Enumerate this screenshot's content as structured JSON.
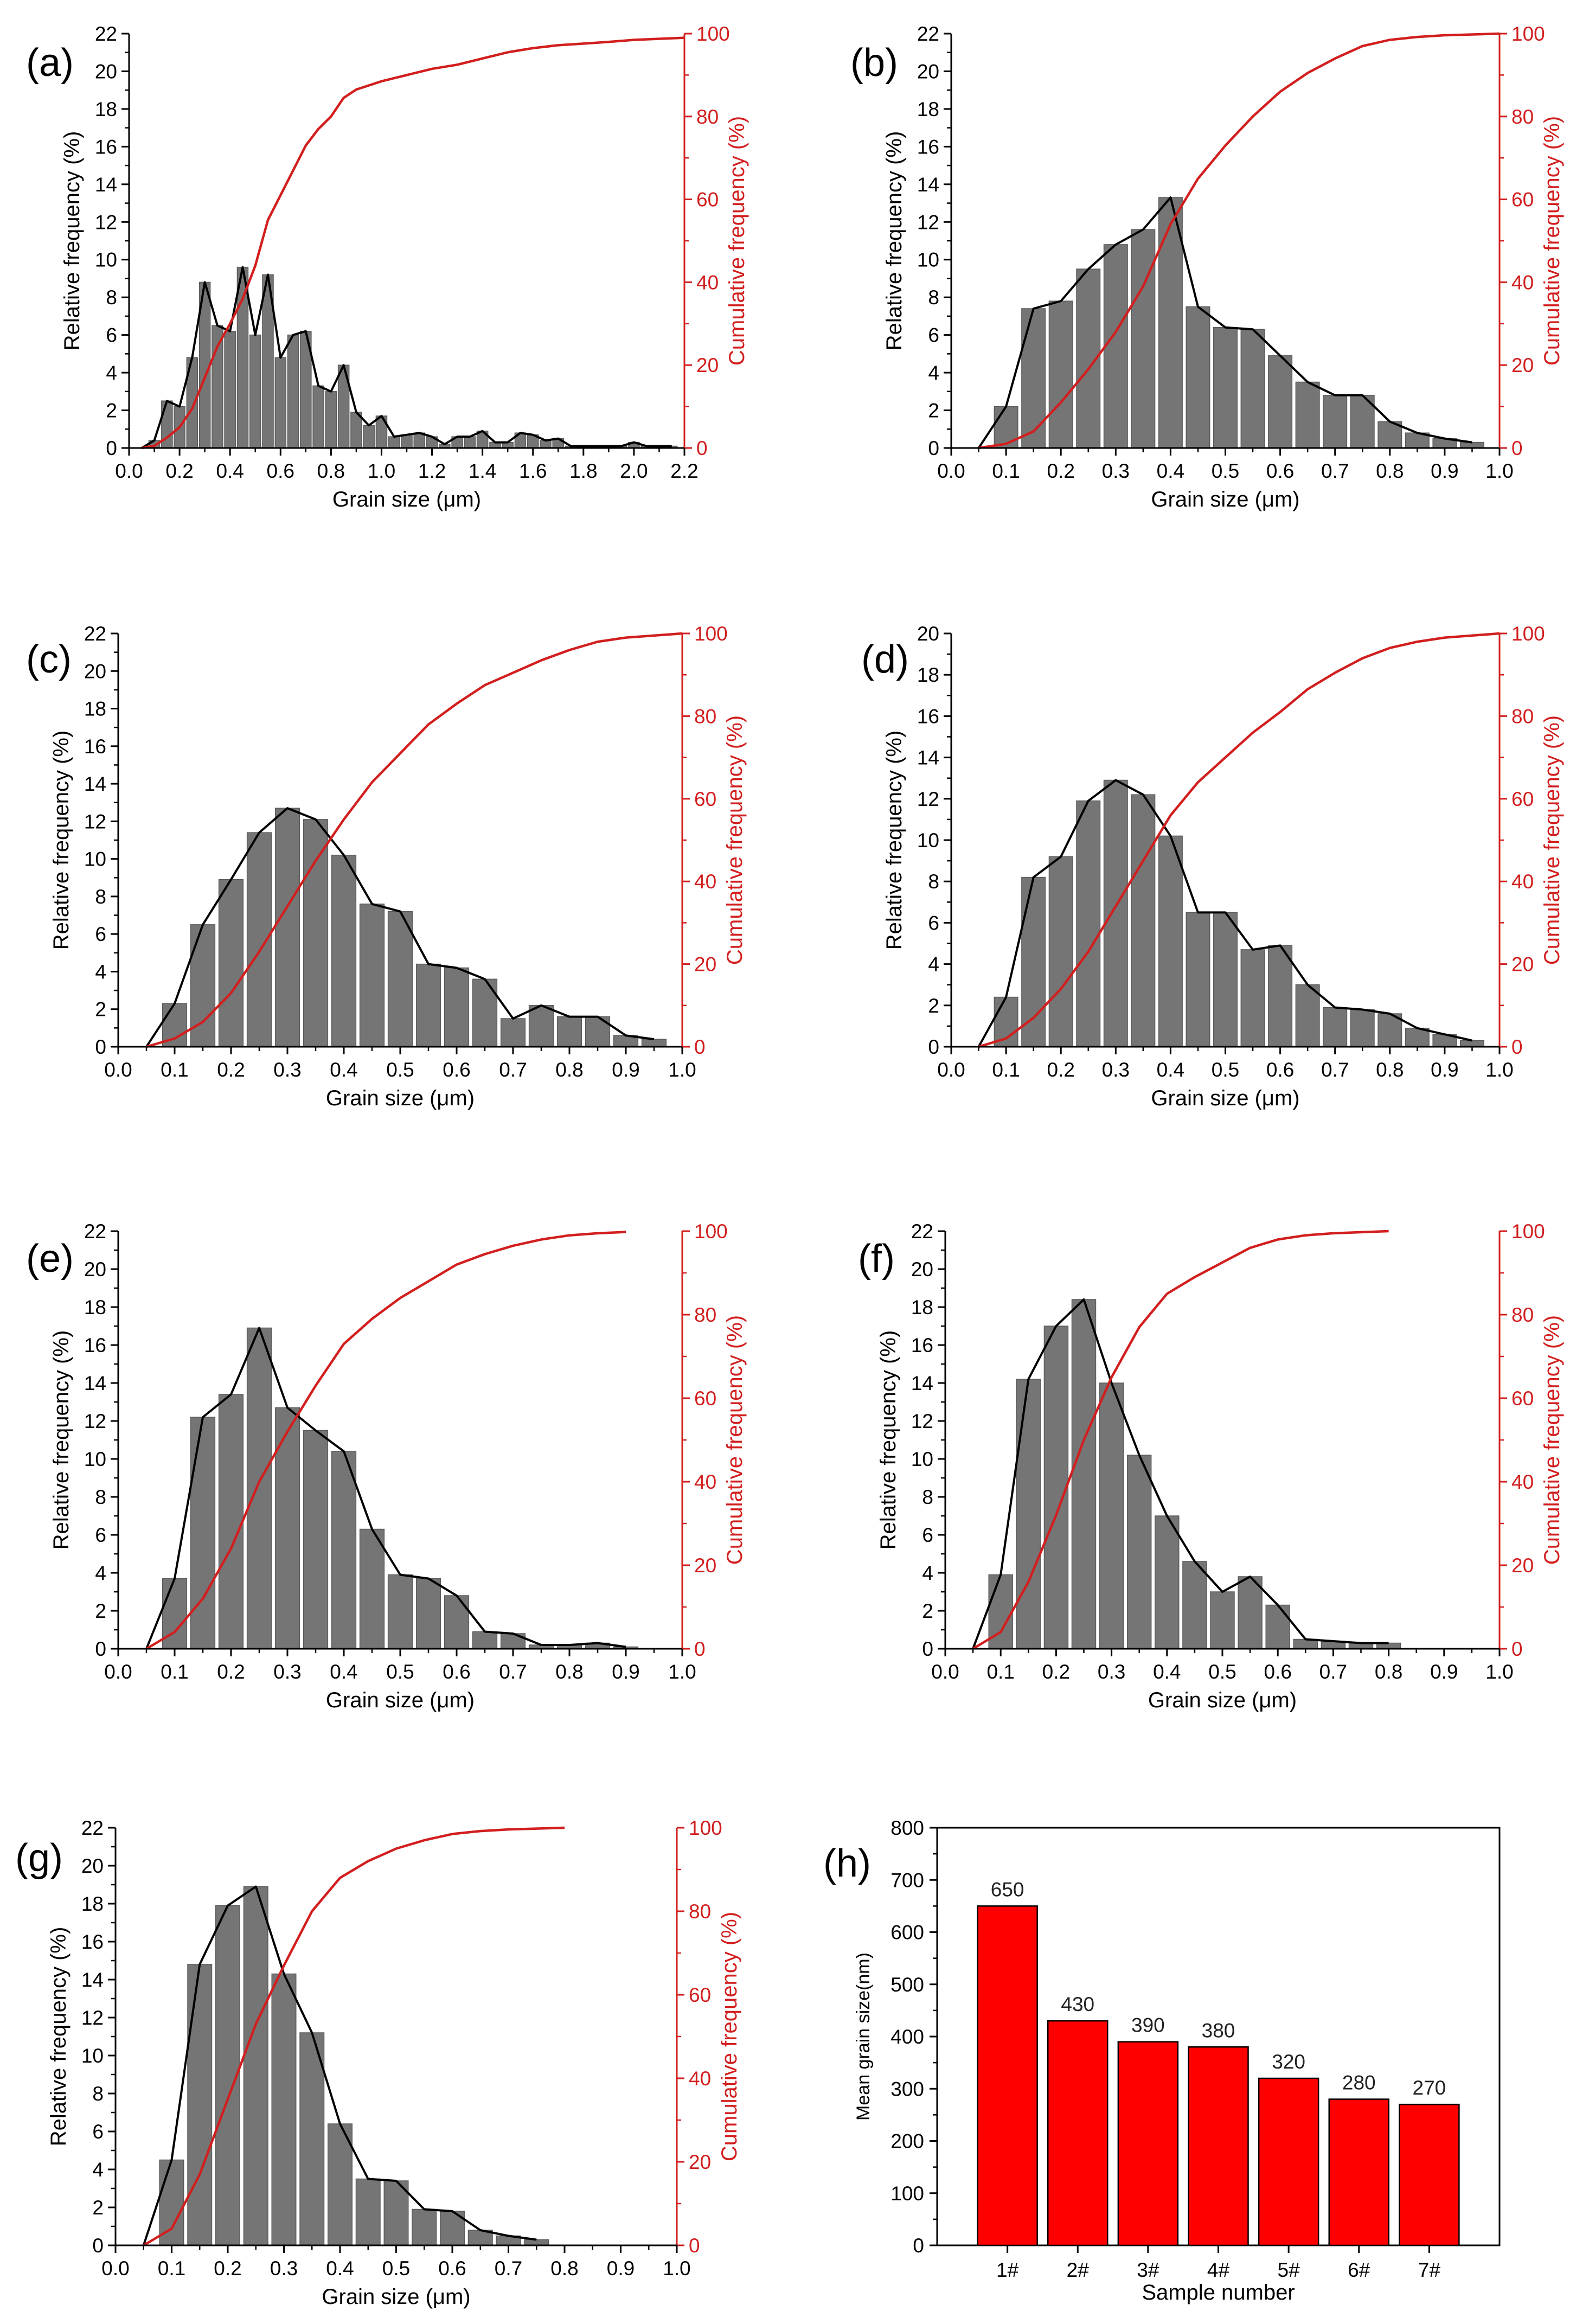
{
  "figure": {
    "x_label": "Grain size (μm)",
    "y_left_label": "Relative frequency (%)",
    "y_right_label": "Cumulative frequency (%)"
  },
  "colors": {
    "bar": "#757575",
    "bar_edge": "#5b5b5b",
    "envelope": "#000000",
    "cumulative": "#d21e1e",
    "mean_bar": "#ff0000",
    "axis": "#000000"
  },
  "chart_data": [
    {
      "id": "a",
      "panel_label": "(a)",
      "type": "bar",
      "bin_width": 0.05,
      "x": [
        0.1,
        0.15,
        0.2,
        0.25,
        0.3,
        0.35,
        0.4,
        0.45,
        0.5,
        0.55,
        0.6,
        0.65,
        0.7,
        0.75,
        0.8,
        0.85,
        0.9,
        0.95,
        1.0,
        1.05,
        1.1,
        1.15,
        1.2,
        1.25,
        1.3,
        1.35,
        1.4,
        1.45,
        1.5,
        1.55,
        1.6,
        1.65,
        1.7,
        1.75,
        1.8,
        1.85,
        1.9,
        1.95,
        2.0,
        2.05,
        2.1,
        2.15
      ],
      "values": [
        0.4,
        2.5,
        2.2,
        4.8,
        8.8,
        6.5,
        6.2,
        9.6,
        6.0,
        9.2,
        4.8,
        6.0,
        6.2,
        3.3,
        3.0,
        4.4,
        1.9,
        1.2,
        1.7,
        0.6,
        0.7,
        0.8,
        0.6,
        0.2,
        0.6,
        0.6,
        0.9,
        0.3,
        0.3,
        0.8,
        0.7,
        0.4,
        0.5,
        0.1,
        0.1,
        0.1,
        0.1,
        0.1,
        0.3,
        0.1,
        0.1,
        0.1
      ],
      "cumulative": [
        [
          0.05,
          0
        ],
        [
          0.1,
          0.5
        ],
        [
          0.15,
          2.5
        ],
        [
          0.2,
          5.0
        ],
        [
          0.25,
          9.5
        ],
        [
          0.3,
          17.0
        ],
        [
          0.35,
          24.5
        ],
        [
          0.4,
          30.0
        ],
        [
          0.45,
          36.0
        ],
        [
          0.5,
          44.0
        ],
        [
          0.55,
          55.0
        ],
        [
          0.6,
          61.0
        ],
        [
          0.65,
          67.0
        ],
        [
          0.7,
          73.0
        ],
        [
          0.75,
          77.0
        ],
        [
          0.8,
          80.0
        ],
        [
          0.85,
          84.5
        ],
        [
          0.9,
          86.5
        ],
        [
          0.95,
          87.5
        ],
        [
          1.0,
          88.5
        ],
        [
          1.1,
          90.0
        ],
        [
          1.2,
          91.5
        ],
        [
          1.3,
          92.5
        ],
        [
          1.4,
          94.0
        ],
        [
          1.5,
          95.5
        ],
        [
          1.6,
          96.5
        ],
        [
          1.7,
          97.2
        ],
        [
          1.8,
          97.6
        ],
        [
          1.9,
          98.0
        ],
        [
          2.0,
          98.5
        ],
        [
          2.2,
          99.0
        ]
      ],
      "xlim": [
        0,
        2.2
      ],
      "ylim": [
        0,
        22
      ],
      "y2lim": [
        0,
        100
      ],
      "x_ticks": [
        0.0,
        0.2,
        0.4,
        0.6,
        0.8,
        1.0,
        1.2,
        1.4,
        1.6,
        1.8,
        2.0,
        2.2
      ],
      "x_tick_labels": [
        "0.0",
        "0.2",
        "0.4",
        "0.6",
        "0.8",
        "1.0",
        "1.2",
        "1.4",
        "1.6",
        "1.8",
        "2.0",
        "2.2"
      ],
      "y_ticks": [
        0,
        2,
        4,
        6,
        8,
        10,
        12,
        14,
        16,
        18,
        20,
        22
      ],
      "y2_ticks": [
        0,
        20,
        40,
        60,
        80,
        100
      ]
    },
    {
      "id": "b",
      "panel_label": "(b)",
      "type": "bar",
      "bin_width": 0.05,
      "x": [
        0.1,
        0.15,
        0.2,
        0.25,
        0.3,
        0.35,
        0.4,
        0.45,
        0.5,
        0.55,
        0.6,
        0.65,
        0.7,
        0.75,
        0.8,
        0.85,
        0.9,
        0.95
      ],
      "values": [
        2.2,
        7.4,
        7.8,
        9.5,
        10.8,
        11.6,
        13.3,
        7.5,
        6.4,
        6.3,
        4.9,
        3.5,
        2.8,
        2.8,
        1.4,
        0.8,
        0.5,
        0.3
      ],
      "cumulative": [
        [
          0.05,
          0
        ],
        [
          0.1,
          1.0
        ],
        [
          0.15,
          4.0
        ],
        [
          0.2,
          11.0
        ],
        [
          0.25,
          19.0
        ],
        [
          0.3,
          28.0
        ],
        [
          0.35,
          39.0
        ],
        [
          0.4,
          54.0
        ],
        [
          0.45,
          65.0
        ],
        [
          0.5,
          73.0
        ],
        [
          0.55,
          80.0
        ],
        [
          0.6,
          86.0
        ],
        [
          0.65,
          90.5
        ],
        [
          0.7,
          94.0
        ],
        [
          0.75,
          97.0
        ],
        [
          0.8,
          98.5
        ],
        [
          0.85,
          99.2
        ],
        [
          0.9,
          99.6
        ],
        [
          1.0,
          100
        ]
      ],
      "xlim": [
        0,
        1.0
      ],
      "ylim": [
        0,
        22
      ],
      "y2lim": [
        0,
        100
      ],
      "x_ticks": [
        0.0,
        0.1,
        0.2,
        0.3,
        0.4,
        0.5,
        0.6,
        0.7,
        0.8,
        0.9,
        1.0
      ],
      "x_tick_labels": [
        "0.0",
        "0.1",
        "0.2",
        "0.3",
        "0.4",
        "0.5",
        "0.6",
        "0.7",
        "0.8",
        "0.9",
        "1.0"
      ],
      "y_ticks": [
        0,
        2,
        4,
        6,
        8,
        10,
        12,
        14,
        16,
        18,
        20,
        22
      ],
      "y2_ticks": [
        0,
        20,
        40,
        60,
        80,
        100
      ]
    },
    {
      "id": "c",
      "panel_label": "(c)",
      "type": "bar",
      "bin_width": 0.05,
      "x": [
        0.1,
        0.15,
        0.2,
        0.25,
        0.3,
        0.35,
        0.4,
        0.45,
        0.5,
        0.55,
        0.6,
        0.65,
        0.7,
        0.75,
        0.8,
        0.85,
        0.9,
        0.95
      ],
      "values": [
        2.3,
        6.5,
        8.9,
        11.4,
        12.7,
        12.1,
        10.2,
        7.6,
        7.2,
        4.4,
        4.2,
        3.6,
        1.5,
        2.2,
        1.6,
        1.6,
        0.6,
        0.4
      ],
      "cumulative": [
        [
          0.05,
          0
        ],
        [
          0.1,
          2.0
        ],
        [
          0.15,
          6.0
        ],
        [
          0.2,
          13.0
        ],
        [
          0.25,
          23.0
        ],
        [
          0.3,
          34.0
        ],
        [
          0.35,
          45.0
        ],
        [
          0.4,
          55.0
        ],
        [
          0.45,
          64.0
        ],
        [
          0.5,
          71.0
        ],
        [
          0.55,
          78.0
        ],
        [
          0.6,
          83.0
        ],
        [
          0.65,
          87.5
        ],
        [
          0.7,
          90.5
        ],
        [
          0.75,
          93.5
        ],
        [
          0.8,
          96.0
        ],
        [
          0.85,
          98.0
        ],
        [
          0.9,
          99.0
        ],
        [
          1.0,
          100
        ]
      ],
      "xlim": [
        0,
        1.0
      ],
      "ylim": [
        0,
        22
      ],
      "y2lim": [
        0,
        100
      ],
      "x_ticks": [
        0.0,
        0.1,
        0.2,
        0.3,
        0.4,
        0.5,
        0.6,
        0.7,
        0.8,
        0.9,
        1.0
      ],
      "x_tick_labels": [
        "0.0",
        "0.1",
        "0.2",
        "0.3",
        "0.4",
        "0.5",
        "0.6",
        "0.7",
        "0.8",
        "0.9",
        "1.0"
      ],
      "y_ticks": [
        0,
        2,
        4,
        6,
        8,
        10,
        12,
        14,
        16,
        18,
        20,
        22
      ],
      "y2_ticks": [
        0,
        20,
        40,
        60,
        80,
        100
      ]
    },
    {
      "id": "d",
      "panel_label": "(d)",
      "type": "bar",
      "bin_width": 0.05,
      "x": [
        0.1,
        0.15,
        0.2,
        0.25,
        0.3,
        0.35,
        0.4,
        0.45,
        0.5,
        0.55,
        0.6,
        0.65,
        0.7,
        0.75,
        0.8,
        0.85,
        0.9,
        0.95
      ],
      "values": [
        2.4,
        8.2,
        9.2,
        11.9,
        12.9,
        12.2,
        10.2,
        6.5,
        6.5,
        4.7,
        4.9,
        3.0,
        1.9,
        1.8,
        1.6,
        0.9,
        0.6,
        0.3
      ],
      "cumulative": [
        [
          0.05,
          0
        ],
        [
          0.1,
          2.0
        ],
        [
          0.15,
          7.0
        ],
        [
          0.2,
          14.0
        ],
        [
          0.25,
          23.0
        ],
        [
          0.3,
          34.0
        ],
        [
          0.35,
          45.0
        ],
        [
          0.4,
          56.0
        ],
        [
          0.45,
          64.0
        ],
        [
          0.5,
          70.0
        ],
        [
          0.55,
          76.0
        ],
        [
          0.6,
          81.0
        ],
        [
          0.65,
          86.5
        ],
        [
          0.7,
          90.5
        ],
        [
          0.75,
          94.0
        ],
        [
          0.8,
          96.5
        ],
        [
          0.85,
          98.0
        ],
        [
          0.9,
          99.0
        ],
        [
          1.0,
          100
        ]
      ],
      "xlim": [
        0,
        1.0
      ],
      "ylim": [
        0,
        20
      ],
      "y2lim": [
        0,
        100
      ],
      "x_ticks": [
        0.0,
        0.1,
        0.2,
        0.3,
        0.4,
        0.5,
        0.6,
        0.7,
        0.8,
        0.9,
        1.0
      ],
      "x_tick_labels": [
        "0.0",
        "0.1",
        "0.2",
        "0.3",
        "0.4",
        "0.5",
        "0.6",
        "0.7",
        "0.8",
        "0.9",
        "1.0"
      ],
      "y_ticks": [
        0,
        2,
        4,
        6,
        8,
        10,
        12,
        14,
        16,
        18,
        20
      ],
      "y2_ticks": [
        0,
        20,
        40,
        60,
        80,
        100
      ]
    },
    {
      "id": "e",
      "panel_label": "(e)",
      "type": "bar",
      "bin_width": 0.05,
      "x": [
        0.1,
        0.15,
        0.2,
        0.25,
        0.3,
        0.35,
        0.4,
        0.45,
        0.5,
        0.55,
        0.6,
        0.65,
        0.7,
        0.75,
        0.8,
        0.85,
        0.9
      ],
      "values": [
        3.7,
        12.2,
        13.4,
        16.9,
        12.7,
        11.5,
        10.4,
        6.3,
        3.9,
        3.7,
        2.8,
        0.9,
        0.8,
        0.2,
        0.2,
        0.3,
        0.1
      ],
      "cumulative": [
        [
          0.05,
          0
        ],
        [
          0.1,
          4.0
        ],
        [
          0.15,
          12.0
        ],
        [
          0.2,
          24.0
        ],
        [
          0.25,
          40.0
        ],
        [
          0.3,
          52.0
        ],
        [
          0.35,
          63.0
        ],
        [
          0.4,
          73.0
        ],
        [
          0.45,
          79.0
        ],
        [
          0.5,
          84.0
        ],
        [
          0.55,
          88.0
        ],
        [
          0.6,
          92.0
        ],
        [
          0.65,
          94.5
        ],
        [
          0.7,
          96.5
        ],
        [
          0.75,
          98.0
        ],
        [
          0.8,
          99.0
        ],
        [
          0.85,
          99.5
        ],
        [
          0.9,
          99.8
        ]
      ],
      "xlim": [
        0,
        1.0
      ],
      "ylim": [
        0,
        22
      ],
      "y2lim": [
        0,
        100
      ],
      "x_ticks": [
        0.0,
        0.1,
        0.2,
        0.3,
        0.4,
        0.5,
        0.6,
        0.7,
        0.8,
        0.9,
        1.0
      ],
      "x_tick_labels": [
        "0.0",
        "0.1",
        "0.2",
        "0.3",
        "0.4",
        "0.5",
        "0.6",
        "0.7",
        "0.8",
        "0.9",
        "1.0"
      ],
      "y_ticks": [
        0,
        2,
        4,
        6,
        8,
        10,
        12,
        14,
        16,
        18,
        20,
        22
      ],
      "y2_ticks": [
        0,
        20,
        40,
        60,
        80,
        100
      ]
    },
    {
      "id": "f",
      "panel_label": "(f)",
      "type": "bar",
      "bin_width": 0.05,
      "x": [
        0.1,
        0.15,
        0.2,
        0.25,
        0.3,
        0.35,
        0.4,
        0.45,
        0.5,
        0.55,
        0.6,
        0.65,
        0.7,
        0.75,
        0.8
      ],
      "values": [
        3.9,
        14.2,
        17.0,
        18.4,
        14.0,
        10.2,
        7.0,
        4.6,
        3.0,
        3.8,
        2.3,
        0.5,
        0.4,
        0.3,
        0.3
      ],
      "cumulative": [
        [
          0.05,
          0
        ],
        [
          0.1,
          4.0
        ],
        [
          0.15,
          16.0
        ],
        [
          0.2,
          32.0
        ],
        [
          0.25,
          50.0
        ],
        [
          0.3,
          65.0
        ],
        [
          0.35,
          77.0
        ],
        [
          0.4,
          85.0
        ],
        [
          0.45,
          89.0
        ],
        [
          0.5,
          92.5
        ],
        [
          0.55,
          96.0
        ],
        [
          0.6,
          98.0
        ],
        [
          0.65,
          99.0
        ],
        [
          0.7,
          99.5
        ],
        [
          0.8,
          100
        ]
      ],
      "xlim": [
        0,
        1.0
      ],
      "ylim": [
        0,
        22
      ],
      "y2lim": [
        0,
        100
      ],
      "x_ticks": [
        0.0,
        0.1,
        0.2,
        0.3,
        0.4,
        0.5,
        0.6,
        0.7,
        0.8,
        0.9,
        1.0
      ],
      "x_tick_labels": [
        "0.0",
        "0.1",
        "0.2",
        "0.3",
        "0.4",
        "0.5",
        "0.6",
        "0.7",
        "0.8",
        "0.9",
        "1.0"
      ],
      "y_ticks": [
        0,
        2,
        4,
        6,
        8,
        10,
        12,
        14,
        16,
        18,
        20,
        22
      ],
      "y2_ticks": [
        0,
        20,
        40,
        60,
        80,
        100
      ]
    },
    {
      "id": "g",
      "panel_label": "(g)",
      "type": "bar",
      "bin_width": 0.05,
      "x": [
        0.1,
        0.15,
        0.2,
        0.25,
        0.3,
        0.35,
        0.4,
        0.45,
        0.5,
        0.55,
        0.6,
        0.65,
        0.7,
        0.75
      ],
      "values": [
        4.5,
        14.8,
        17.9,
        18.9,
        14.3,
        11.2,
        6.4,
        3.5,
        3.4,
        1.9,
        1.8,
        0.8,
        0.5,
        0.3
      ],
      "cumulative": [
        [
          0.05,
          0
        ],
        [
          0.1,
          4.0
        ],
        [
          0.15,
          17.0
        ],
        [
          0.2,
          35.0
        ],
        [
          0.25,
          53.0
        ],
        [
          0.3,
          67.0
        ],
        [
          0.35,
          80.0
        ],
        [
          0.4,
          88.0
        ],
        [
          0.45,
          92.0
        ],
        [
          0.5,
          95.0
        ],
        [
          0.55,
          97.0
        ],
        [
          0.6,
          98.5
        ],
        [
          0.65,
          99.2
        ],
        [
          0.7,
          99.6
        ],
        [
          0.8,
          100
        ]
      ],
      "xlim": [
        0,
        1.0
      ],
      "ylim": [
        0,
        22
      ],
      "y2lim": [
        0,
        100
      ],
      "x_ticks": [
        0.0,
        0.1,
        0.2,
        0.3,
        0.4,
        0.5,
        0.6,
        0.7,
        0.8,
        0.9,
        1.0
      ],
      "x_tick_labels": [
        "0.0",
        "0.1",
        "0.2",
        "0.3",
        "0.4",
        "0.5",
        "0.6",
        "0.7",
        "0.8",
        "0.9",
        "1.0"
      ],
      "y_ticks": [
        0,
        2,
        4,
        6,
        8,
        10,
        12,
        14,
        16,
        18,
        20,
        22
      ],
      "y2_ticks": [
        0,
        20,
        40,
        60,
        80,
        100
      ]
    },
    {
      "id": "h",
      "panel_label": "(h)",
      "type": "bar",
      "title": "",
      "xlabel": "Sample number",
      "ylabel": "Mean grain size(nm)",
      "categories": [
        "1#",
        "2#",
        "3#",
        "4#",
        "5#",
        "6#",
        "7#"
      ],
      "values": [
        650,
        430,
        390,
        380,
        320,
        280,
        270
      ],
      "value_labels": [
        "650",
        "430",
        "390",
        "380",
        "320",
        "280",
        "270"
      ],
      "ylim": [
        0,
        800
      ],
      "y_ticks": [
        0,
        100,
        200,
        300,
        400,
        500,
        600,
        700,
        800
      ]
    }
  ]
}
